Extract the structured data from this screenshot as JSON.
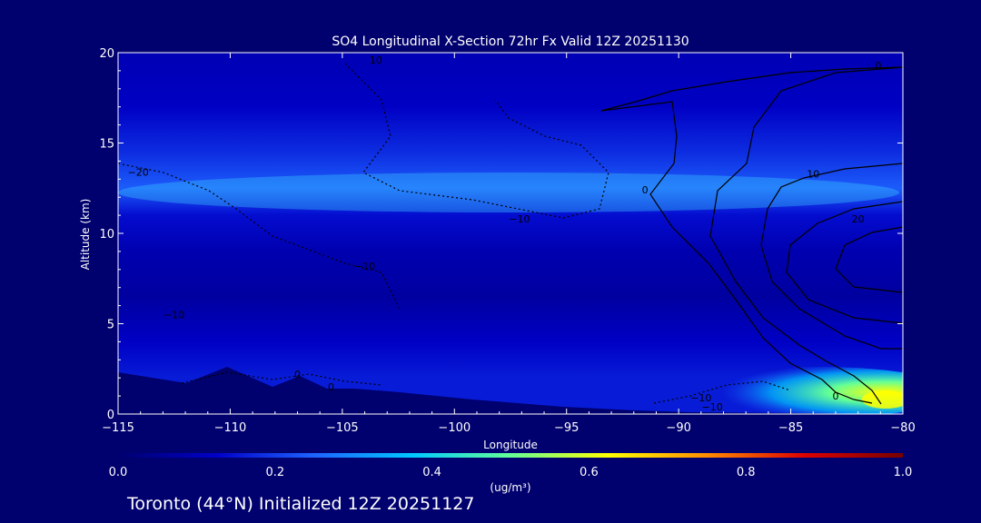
{
  "chart_data": {
    "type": "heatmap",
    "title": "SO4 Longitudinal X-Section 72hr  Fx Valid 12Z 20251130",
    "xlabel": "Longitude",
    "ylabel": "Altitude (km)",
    "xlim": [
      -115,
      -80
    ],
    "ylim": [
      0,
      20
    ],
    "x_ticks": [
      -115,
      -110,
      -105,
      -100,
      -95,
      -90,
      -85,
      -80
    ],
    "x_tick_labels": [
      "−115",
      "−110",
      "−105",
      "−100",
      "−95",
      "−90",
      "−85",
      "−80"
    ],
    "y_ticks": [
      0,
      5,
      10,
      15,
      20
    ],
    "y_tick_labels": [
      "0",
      "5",
      "10",
      "15",
      "20"
    ],
    "colorbar": {
      "min": 0.0,
      "max": 1.0,
      "ticks": [
        0.0,
        0.2,
        0.4,
        0.6,
        0.8,
        1.0
      ],
      "tick_labels": [
        "0.0",
        "0.2",
        "0.4",
        "0.6",
        "0.8",
        "1.0"
      ],
      "units": "(ug/m³)",
      "colors": [
        "#00006e",
        "#0000c8",
        "#1e64ff",
        "#00c8ff",
        "#64ff96",
        "#ffff00",
        "#ff8c00",
        "#dc0000",
        "#780000"
      ]
    },
    "value_levels": [
      {
        "y": 0.5,
        "v": 0.16
      },
      {
        "y": 2.0,
        "v": 0.16
      },
      {
        "y": 4.0,
        "v": 0.12
      },
      {
        "y": 6.5,
        "v": 0.07
      },
      {
        "y": 9.0,
        "v": 0.09
      },
      {
        "y": 11.0,
        "v": 0.14
      },
      {
        "y": 12.5,
        "v": 0.24
      },
      {
        "y": 14.5,
        "v": 0.18
      },
      {
        "y": 17.0,
        "v": 0.12
      },
      {
        "y": 19.5,
        "v": 0.1
      }
    ],
    "hotspot": {
      "lon": -81.5,
      "alt": 1.2,
      "v": 0.6
    },
    "contour_labels": [
      {
        "text": "10",
        "lon": -103.5,
        "alt": 19.6
      },
      {
        "text": "−20",
        "lon": -114.1,
        "alt": 13.4
      },
      {
        "text": "−10",
        "lon": -97.1,
        "alt": 10.8
      },
      {
        "text": "−10",
        "lon": -104.0,
        "alt": 8.2
      },
      {
        "text": "−10",
        "lon": -112.5,
        "alt": 5.5
      },
      {
        "text": "0",
        "lon": -91.5,
        "alt": 12.4
      },
      {
        "text": "10",
        "lon": -84.0,
        "alt": 13.3
      },
      {
        "text": "20",
        "lon": -82.0,
        "alt": 10.8
      },
      {
        "text": "0",
        "lon": -81.1,
        "alt": 19.3
      },
      {
        "text": "−10",
        "lon": -89.0,
        "alt": 0.9
      },
      {
        "text": "−10",
        "lon": -88.5,
        "alt": 0.4
      },
      {
        "text": "0",
        "lon": -83.0,
        "alt": 1.0
      },
      {
        "text": "0",
        "lon": -105.5,
        "alt": 1.5
      },
      {
        "text": "0",
        "lon": -107.0,
        "alt": 2.2
      }
    ],
    "footer": "Toronto (44°N) Initialized 12Z 20251127"
  }
}
